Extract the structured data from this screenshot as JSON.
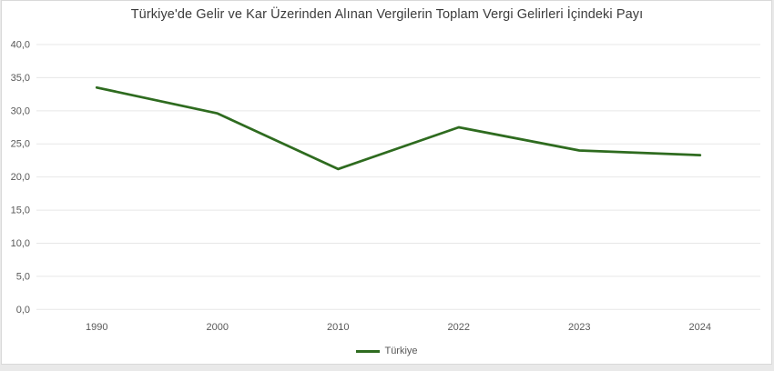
{
  "chart_data": {
    "type": "line",
    "title": "Türkiye'de Gelir ve Kar Üzerinden Alınan Vergilerin Toplam Vergi Gelirleri İçindeki Payı",
    "categories": [
      "1990",
      "2000",
      "2010",
      "2022",
      "2023",
      "2024"
    ],
    "series": [
      {
        "name": "Türkiye",
        "color": "#2e6b1f",
        "values": [
          33.5,
          29.6,
          21.2,
          27.5,
          24.0,
          23.3
        ]
      }
    ],
    "ylim": [
      0,
      40
    ],
    "yticks": [
      {
        "value": 0,
        "label": "0,0"
      },
      {
        "value": 5,
        "label": "5,0"
      },
      {
        "value": 10,
        "label": "10,0"
      },
      {
        "value": 15,
        "label": "15,0"
      },
      {
        "value": 20,
        "label": "20,0"
      },
      {
        "value": 25,
        "label": "25,0"
      },
      {
        "value": 30,
        "label": "30,0"
      },
      {
        "value": 35,
        "label": "35,0"
      },
      {
        "value": 40,
        "label": "40,0"
      }
    ],
    "grid": "horizontal",
    "legend_position": "bottom",
    "colors": {
      "grid": "#e7e7e7",
      "axis_text": "#595959",
      "title_text": "#3b3b3b",
      "frame_border": "#d9d9d9",
      "page_background": "#e9e9e9"
    }
  }
}
